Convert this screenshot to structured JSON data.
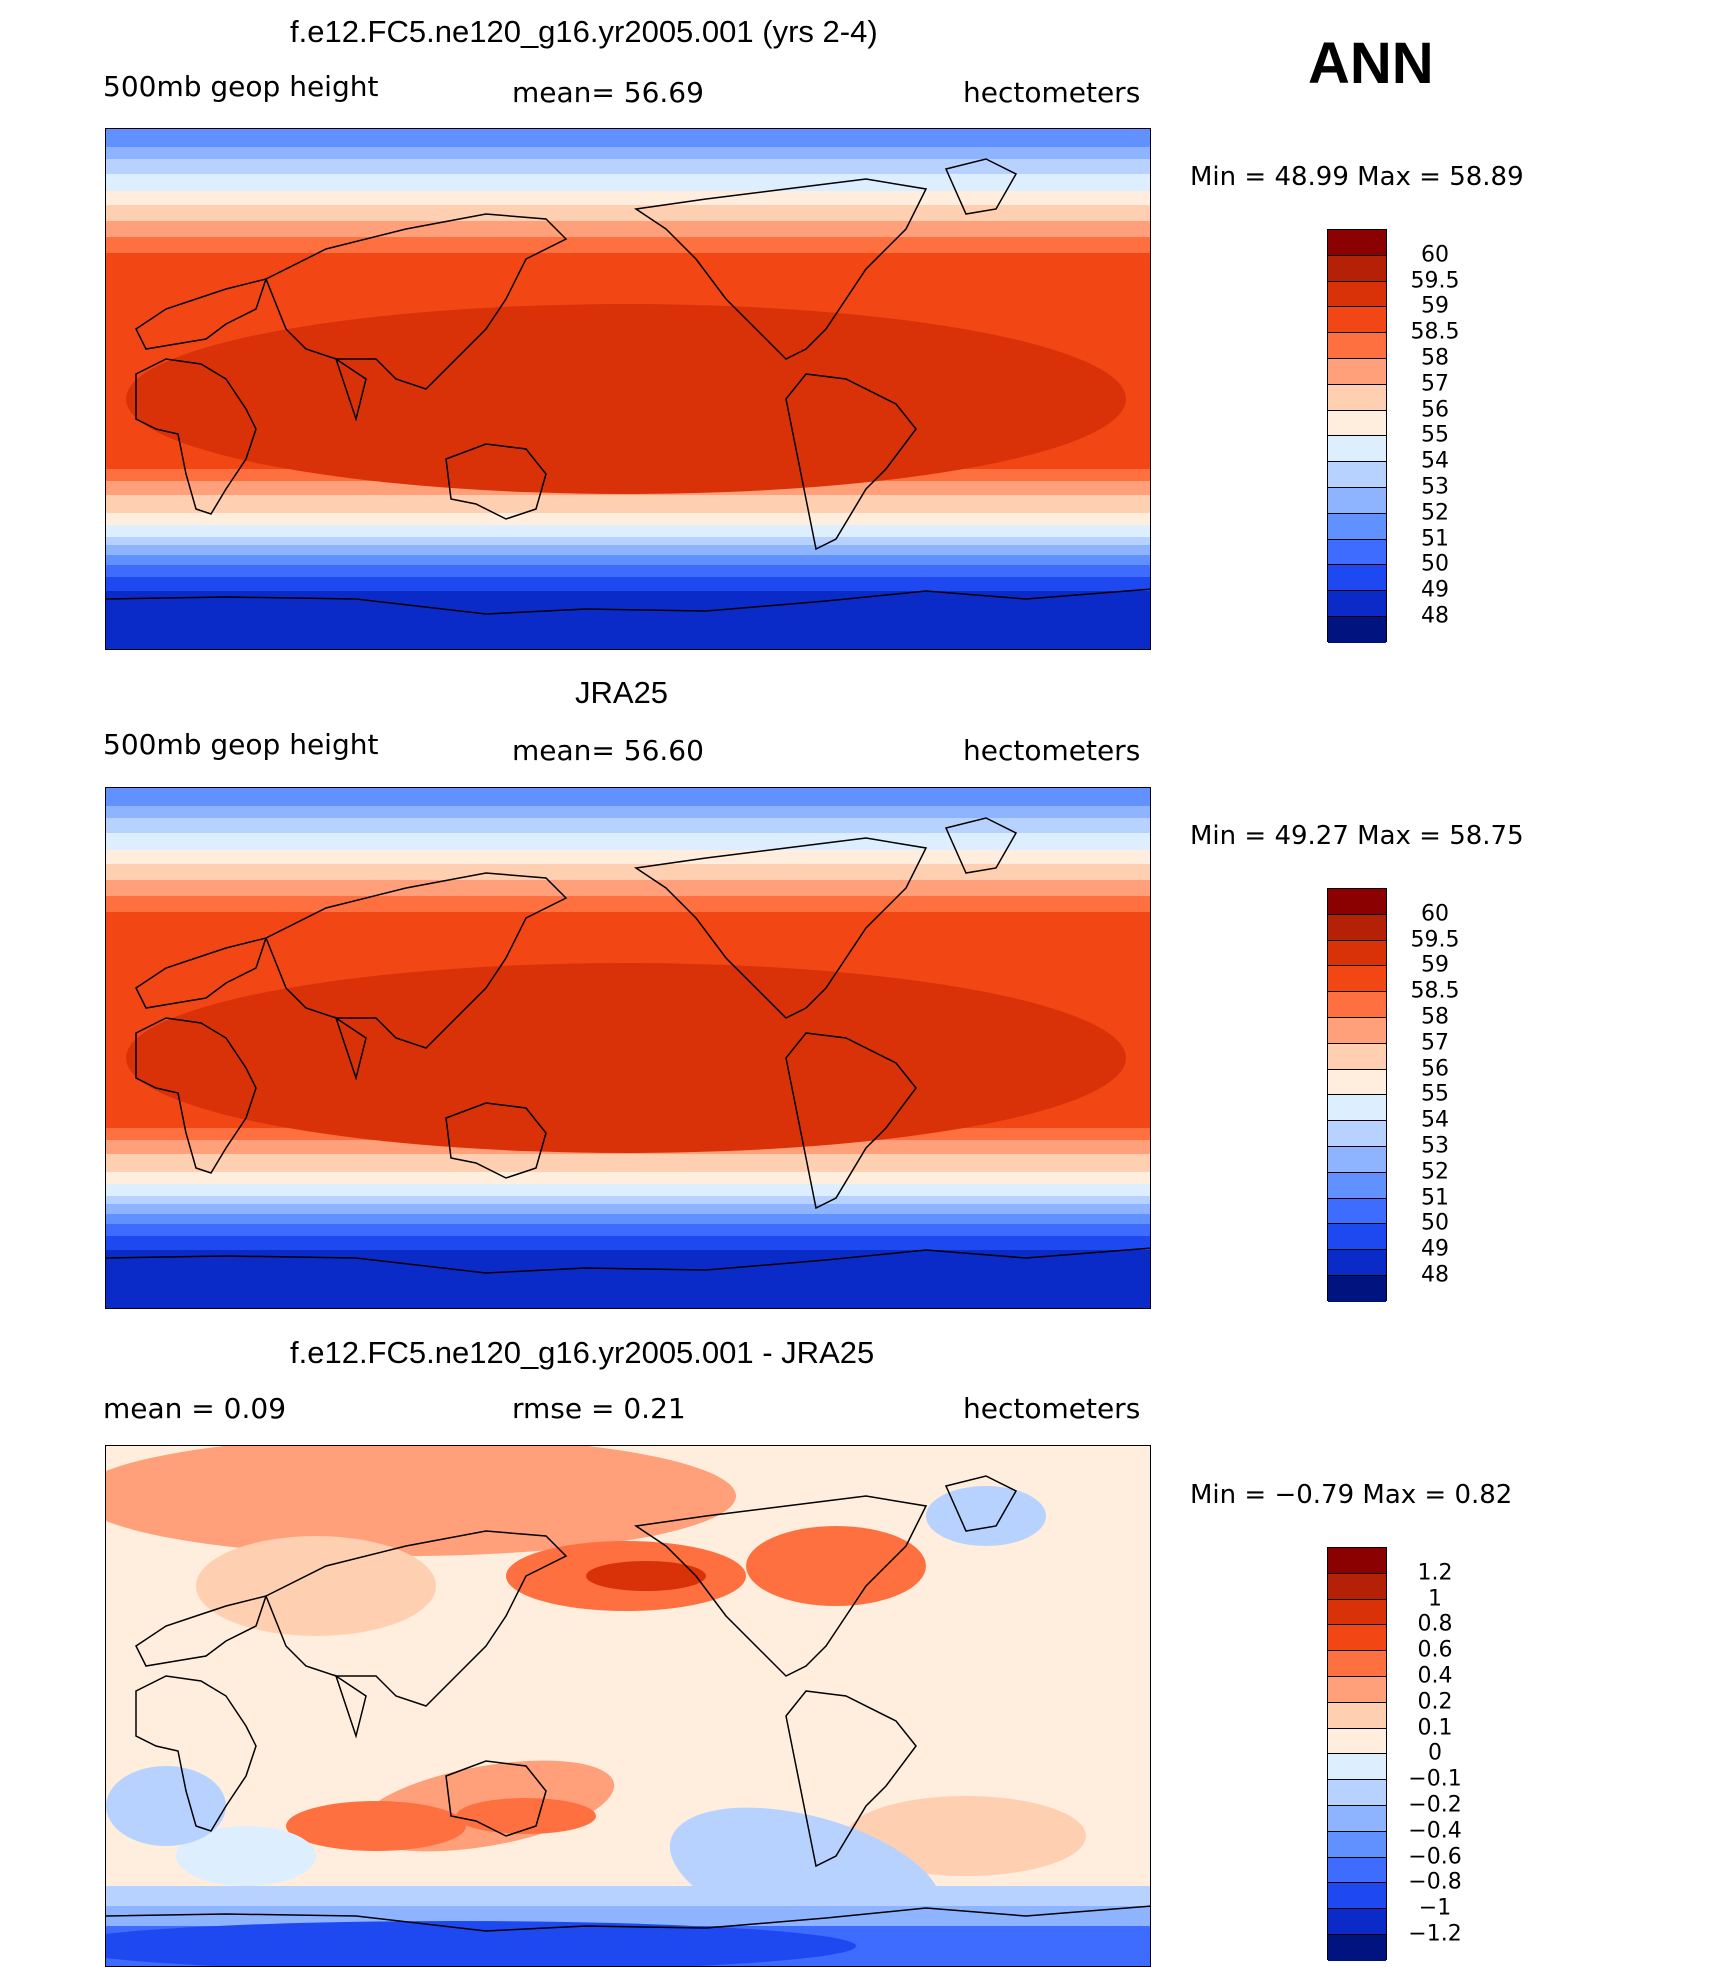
{
  "season": "ANN",
  "panels": [
    {
      "title": "f.e12.FC5.ne120_g16.yr2005.001 (yrs 2-4)",
      "left_label": "500mb  geop  height",
      "center_label": "mean=   56.69",
      "right_label": "hectometers",
      "minmax": "Min  =    48.99  Max  =    58.89",
      "levels": [
        "60",
        "59.5",
        "59",
        "58.5",
        "58",
        "57",
        "56",
        "55",
        "54",
        "53",
        "52",
        "51",
        "50",
        "49",
        "48"
      ],
      "colors": [
        "#8b0000",
        "#b42106",
        "#d93209",
        "#f34615",
        "#ff7040",
        "#ffa07a",
        "#ffcfb1",
        "#ffeedd",
        "#ddeeff",
        "#b7d2ff",
        "#8fb4ff",
        "#6091ff",
        "#3d6cff",
        "#1e49f0",
        "#0a2bc8",
        "#00137e"
      ],
      "field": "mean",
      "mean_value": 56.69,
      "min": 48.99,
      "max": 58.89
    },
    {
      "title": "JRA25",
      "left_label": "500mb  geop  height",
      "center_label": "mean=   56.60",
      "right_label": "hectometers",
      "minmax": "Min  =    49.27  Max  =    58.75",
      "levels": [
        "60",
        "59.5",
        "59",
        "58.5",
        "58",
        "57",
        "56",
        "55",
        "54",
        "53",
        "52",
        "51",
        "50",
        "49",
        "48"
      ],
      "colors": [
        "#8b0000",
        "#b42106",
        "#d93209",
        "#f34615",
        "#ff7040",
        "#ffa07a",
        "#ffcfb1",
        "#ffeedd",
        "#ddeeff",
        "#b7d2ff",
        "#8fb4ff",
        "#6091ff",
        "#3d6cff",
        "#1e49f0",
        "#0a2bc8",
        "#00137e"
      ],
      "field": "mean",
      "mean_value": 56.6,
      "min": 49.27,
      "max": 58.75
    },
    {
      "title": "f.e12.FC5.ne120_g16.yr2005.001 - JRA25",
      "left_label": "mean  =      0.09",
      "center_label": "rmse  =      0.21",
      "right_label": "hectometers",
      "minmax": "Min  =    −0.79  Max  =      0.82",
      "levels": [
        "1.2",
        "1",
        "0.8",
        "0.6",
        "0.4",
        "0.2",
        "0.1",
        "0",
        "−0.1",
        "−0.2",
        "−0.4",
        "−0.6",
        "−0.8",
        "−1",
        "−1.2"
      ],
      "colors": [
        "#8b0000",
        "#b42106",
        "#d93209",
        "#f34615",
        "#ff7040",
        "#ffa07a",
        "#ffcfb1",
        "#ffeedd",
        "#ddeeff",
        "#b7d2ff",
        "#8fb4ff",
        "#6091ff",
        "#3d6cff",
        "#1e49f0",
        "#0a2bc8",
        "#00137e"
      ],
      "field": "diff",
      "mean_value": 0.09,
      "rmse_value": 0.21,
      "min": -0.79,
      "max": 0.82
    }
  ]
}
